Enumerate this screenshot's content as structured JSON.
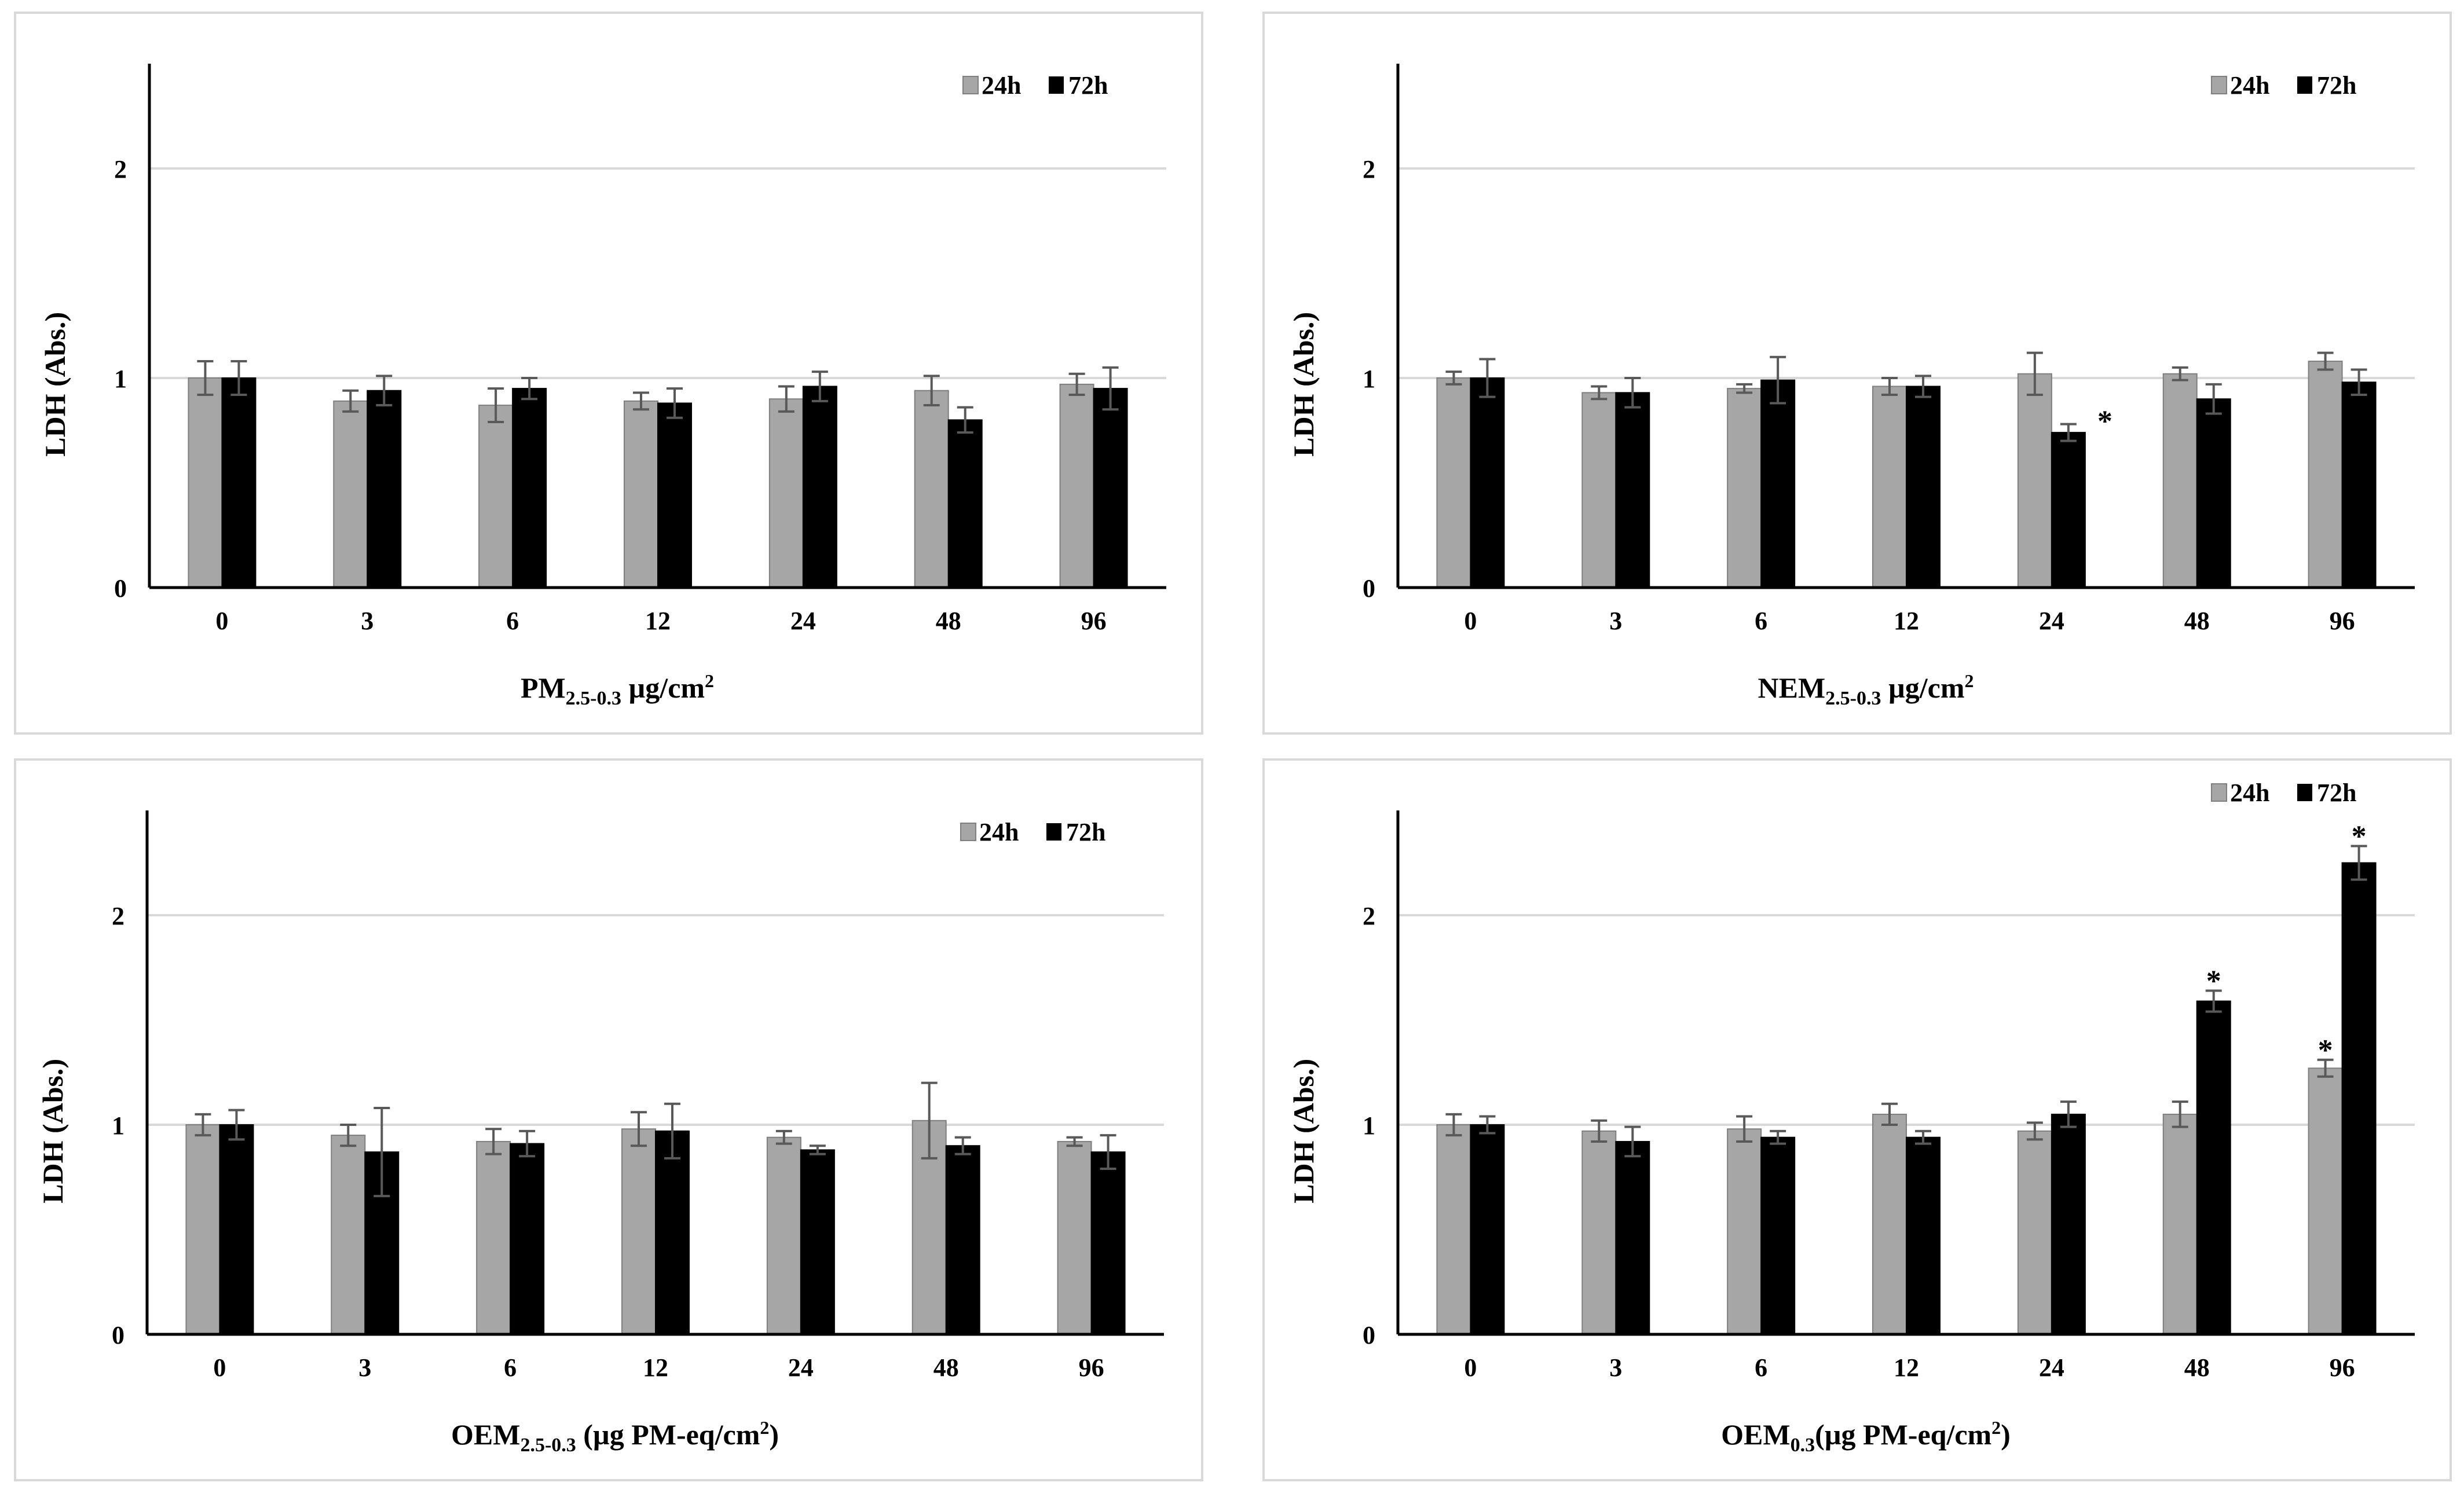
{
  "colors": {
    "h24": "#a6a6a6",
    "h72": "#000000",
    "grid": "#d9d9d9",
    "error": "#595959"
  },
  "chart_data": [
    {
      "type": "bar",
      "title": "",
      "xlabel_main": "PM",
      "xlabel_sub": "2.5-0.3",
      "xlabel_sup_pre": " µg/cm",
      "xlabel_sup": "2",
      "xlabel_post": "",
      "ylabel": "LDH (Abs.)",
      "ylim": [
        0,
        2.5
      ],
      "yticks": [
        0,
        1,
        2
      ],
      "categories": [
        "0",
        "3",
        "6",
        "12",
        "24",
        "48",
        "96"
      ],
      "legend": [
        "24h",
        "72h"
      ],
      "series": [
        {
          "name": "24h",
          "values": [
            1.0,
            0.89,
            0.87,
            0.89,
            0.9,
            0.94,
            0.97
          ],
          "errors": [
            0.08,
            0.05,
            0.08,
            0.04,
            0.06,
            0.07,
            0.05
          ],
          "sig": [
            false,
            false,
            false,
            false,
            false,
            false,
            false
          ]
        },
        {
          "name": "72h",
          "values": [
            1.0,
            0.94,
            0.95,
            0.88,
            0.96,
            0.8,
            0.95
          ],
          "errors": [
            0.08,
            0.07,
            0.05,
            0.07,
            0.07,
            0.06,
            0.1
          ],
          "sig": [
            false,
            false,
            false,
            false,
            false,
            false,
            false
          ]
        }
      ],
      "sig_marker": "*"
    },
    {
      "type": "bar",
      "title": "",
      "xlabel_main": "NEM",
      "xlabel_sub": "2.5-0.3",
      "xlabel_sup_pre": " µg/cm",
      "xlabel_sup": "2",
      "xlabel_post": "",
      "ylabel": "LDH (Abs.)",
      "ylim": [
        0,
        2.5
      ],
      "yticks": [
        0,
        1,
        2
      ],
      "categories": [
        "0",
        "3",
        "6",
        "12",
        "24",
        "48",
        "96"
      ],
      "legend": [
        "24h",
        "72h"
      ],
      "series": [
        {
          "name": "24h",
          "values": [
            1.0,
            0.93,
            0.95,
            0.96,
            1.02,
            1.02,
            1.08
          ],
          "errors": [
            0.03,
            0.03,
            0.02,
            0.04,
            0.1,
            0.03,
            0.04
          ],
          "sig": [
            false,
            false,
            false,
            false,
            false,
            false,
            false
          ]
        },
        {
          "name": "72h",
          "values": [
            1.0,
            0.93,
            0.99,
            0.96,
            0.74,
            0.9,
            0.98
          ],
          "errors": [
            0.09,
            0.07,
            0.11,
            0.05,
            0.04,
            0.07,
            0.06
          ],
          "sig": [
            false,
            false,
            false,
            false,
            true,
            false,
            false
          ]
        }
      ],
      "sig_marker": "*"
    },
    {
      "type": "bar",
      "title": "",
      "xlabel_main": "OEM",
      "xlabel_sub": "2.5-0.3",
      "xlabel_sup_pre": " (µg PM-eq/cm",
      "xlabel_sup": "2",
      "xlabel_post": ")",
      "ylabel": "LDH (Abs.)",
      "ylim": [
        0,
        2.5
      ],
      "yticks": [
        0,
        1,
        2
      ],
      "categories": [
        "0",
        "3",
        "6",
        "12",
        "24",
        "48",
        "96"
      ],
      "legend": [
        "24h",
        "72h"
      ],
      "series": [
        {
          "name": "24h",
          "values": [
            1.0,
            0.95,
            0.92,
            0.98,
            0.94,
            1.02,
            0.92
          ],
          "errors": [
            0.05,
            0.05,
            0.06,
            0.08,
            0.03,
            0.18,
            0.02
          ],
          "sig": [
            false,
            false,
            false,
            false,
            false,
            false,
            false
          ]
        },
        {
          "name": "72h",
          "values": [
            1.0,
            0.87,
            0.91,
            0.97,
            0.88,
            0.9,
            0.87
          ],
          "errors": [
            0.07,
            0.21,
            0.06,
            0.13,
            0.02,
            0.04,
            0.08
          ],
          "sig": [
            false,
            false,
            false,
            false,
            false,
            false,
            false
          ]
        }
      ],
      "sig_marker": "*"
    },
    {
      "type": "bar",
      "title": "",
      "xlabel_main": "OEM",
      "xlabel_sub": "0.3",
      "xlabel_sup_pre": "(µg PM-eq/cm",
      "xlabel_sup": "2",
      "xlabel_post": ")",
      "ylabel": "LDH (Abs.)",
      "ylim": [
        0,
        2.5
      ],
      "yticks": [
        0,
        1,
        2
      ],
      "categories": [
        "0",
        "3",
        "6",
        "12",
        "24",
        "48",
        "96"
      ],
      "legend": [
        "24h",
        "72h"
      ],
      "series": [
        {
          "name": "24h",
          "values": [
            1.0,
            0.97,
            0.98,
            1.05,
            0.97,
            1.05,
            1.27
          ],
          "errors": [
            0.05,
            0.05,
            0.06,
            0.05,
            0.04,
            0.06,
            0.04
          ],
          "sig": [
            false,
            false,
            false,
            false,
            false,
            false,
            true
          ]
        },
        {
          "name": "72h",
          "values": [
            1.0,
            0.92,
            0.94,
            0.94,
            1.05,
            1.59,
            2.25
          ],
          "errors": [
            0.04,
            0.07,
            0.03,
            0.03,
            0.06,
            0.05,
            0.08
          ],
          "sig": [
            false,
            false,
            false,
            false,
            false,
            true,
            true
          ]
        }
      ],
      "sig_marker": "*"
    }
  ]
}
